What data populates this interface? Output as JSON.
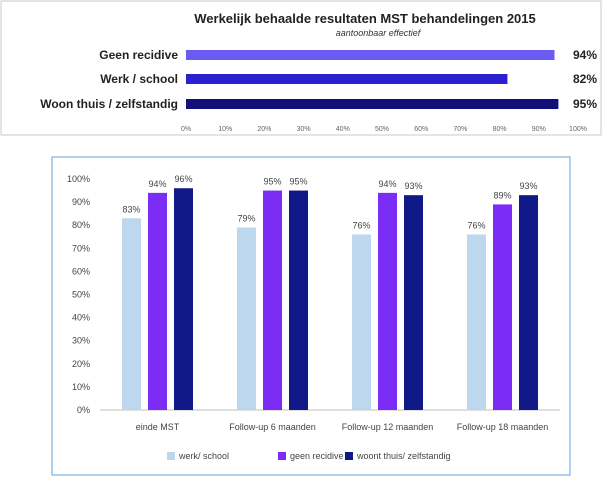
{
  "chart_data": [
    {
      "type": "bar",
      "orientation": "horizontal",
      "title": "Werkelijk behaalde resultaten MST behandelingen 2015",
      "subtitle": "aantoonbaar effectief",
      "categories": [
        "Geen recidive",
        "Werk / school",
        "Woon thuis / zelfstandig"
      ],
      "values": [
        94,
        82,
        95
      ],
      "value_labels": [
        "94%",
        "82%",
        "95%"
      ],
      "colors": [
        "#6b5bf0",
        "#2b1fd0",
        "#14107a"
      ],
      "xlim": [
        0,
        100
      ],
      "xticks": [
        "0%",
        "10%",
        "20%",
        "30%",
        "40%",
        "50%",
        "60%",
        "70%",
        "80%",
        "90%",
        "100%"
      ],
      "grid": false,
      "legend": "none"
    },
    {
      "type": "bar",
      "orientation": "vertical",
      "categories": [
        "einde MST",
        "Follow-up 6 maanden",
        "Follow-up 12 maanden",
        "Follow-up 18 maanden"
      ],
      "series": [
        {
          "name": "werk/ school",
          "values": [
            83,
            79,
            76,
            76
          ],
          "labels": [
            "83%",
            "79%",
            "76%",
            "76%"
          ],
          "color": "#bdd7ee"
        },
        {
          "name": "geen recidive",
          "values": [
            94,
            95,
            94,
            89
          ],
          "labels": [
            "94%",
            "95%",
            "94%",
            "89%"
          ],
          "color": "#7b2cf5"
        },
        {
          "name": "woont thuis/ zelfstandig",
          "values": [
            96,
            95,
            93,
            93
          ],
          "labels": [
            "96%",
            "95%",
            "93%",
            "93%"
          ],
          "color": "#111887"
        }
      ],
      "ylim": [
        0,
        100
      ],
      "yticks": [
        "0%",
        "10%",
        "20%",
        "30%",
        "40%",
        "50%",
        "60%",
        "70%",
        "80%",
        "90%",
        "100%"
      ],
      "grid": false,
      "legend": "bottom",
      "frame_color": "#7fb0e0"
    }
  ]
}
